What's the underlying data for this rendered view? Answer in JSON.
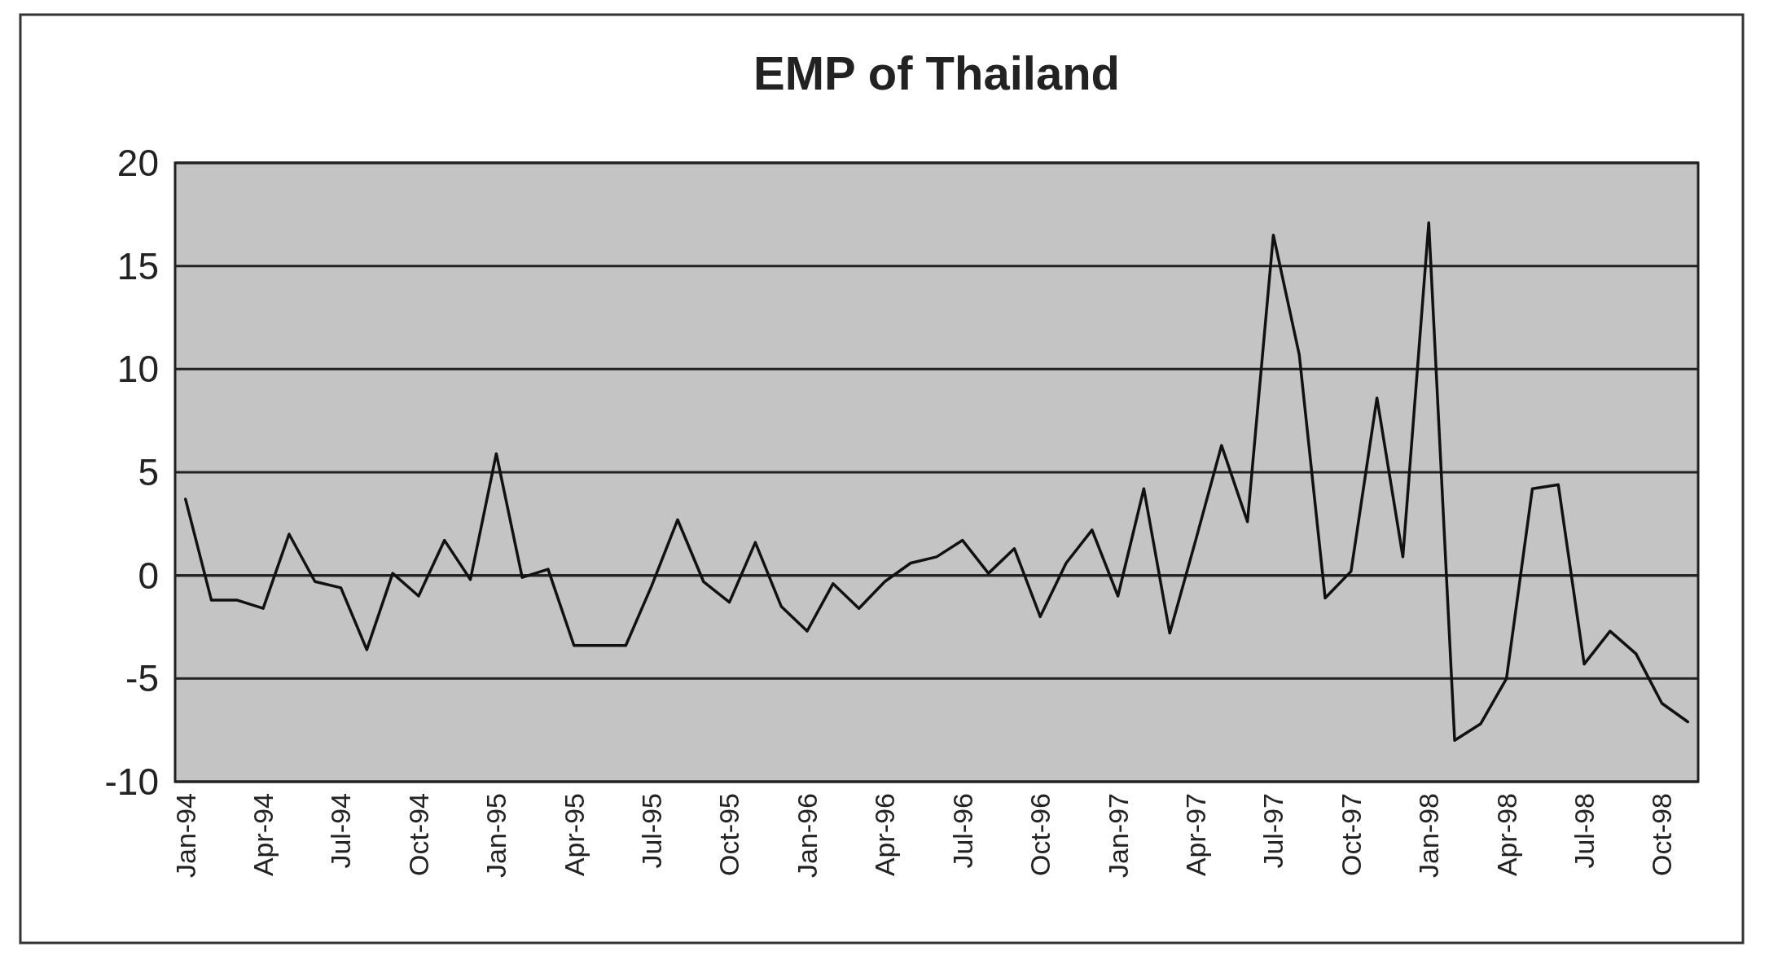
{
  "chart_data": {
    "type": "line",
    "title": "EMP of Thailand",
    "categories": [
      "Jan-94",
      null,
      null,
      "Apr-94",
      null,
      null,
      "Jul-94",
      null,
      null,
      "Oct-94",
      null,
      null,
      "Jan-95",
      null,
      null,
      "Apr-95",
      null,
      null,
      "Jul-95",
      null,
      null,
      "Oct-95",
      null,
      null,
      "Jan-96",
      null,
      null,
      "Apr-96",
      null,
      null,
      "Jul-96",
      null,
      null,
      "Oct-96",
      null,
      null,
      "Jan-97",
      null,
      null,
      "Apr-97",
      null,
      null,
      "Jul-97",
      null,
      null,
      "Oct-97",
      null,
      null,
      "Jan-98",
      null,
      null,
      "Apr-98",
      null,
      null,
      "Jul-98",
      null,
      null,
      "Oct-98",
      null
    ],
    "series": [
      {
        "color": "#111111",
        "values": [
          3.7,
          -1.2,
          -1.2,
          -1.6,
          2.0,
          -0.3,
          -0.6,
          -3.6,
          0.1,
          -1.0,
          1.7,
          -0.2,
          5.9,
          -0.1,
          0.3,
          -3.4,
          -3.4,
          -3.4,
          -0.5,
          2.7,
          -0.3,
          -1.3,
          1.6,
          -1.5,
          -2.7,
          -0.4,
          -1.6,
          -0.3,
          0.6,
          0.9,
          1.7,
          0.1,
          1.3,
          -2.0,
          0.6,
          2.2,
          -1.0,
          4.2,
          -2.8,
          1.7,
          6.3,
          2.6,
          16.5,
          10.7,
          -1.1,
          0.2,
          8.6,
          0.9,
          17.1,
          -8.0,
          -7.2,
          -5.0,
          4.2,
          4.4,
          -4.3,
          -2.7,
          -3.8,
          -6.2,
          -7.1
        ]
      }
    ],
    "ylim": [
      -10,
      20
    ],
    "yticks": [
      -10,
      -5,
      0,
      5,
      10,
      15,
      20
    ],
    "grid": "y",
    "marker": "none",
    "line_style": "solid"
  }
}
